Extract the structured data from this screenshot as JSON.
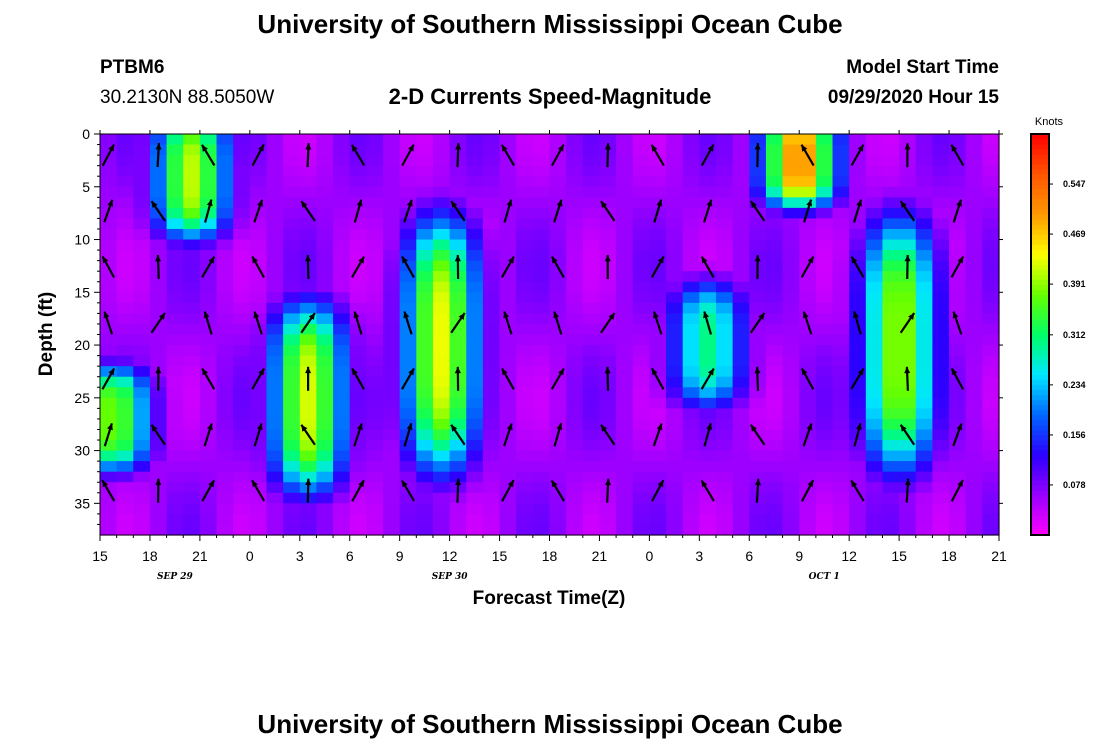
{
  "header": {
    "title_top": "University of Southern Mississippi Ocean Cube",
    "station_id": "PTBM6",
    "station_coords": "30.2130N 88.5050W",
    "subtitle": "2-D Currents Speed-Magnitude",
    "model_start_label": "Model Start Time",
    "model_start_value": "09/29/2020 Hour 15",
    "title_bottom": "University of Southern Mississippi Ocean Cube"
  },
  "colorbar": {
    "unit_label": "Knots",
    "tick_labels": [
      "0.547",
      "0.469",
      "0.391",
      "0.312",
      "0.234",
      "0.156",
      "0.078"
    ],
    "ticks": [
      0.547,
      0.469,
      0.391,
      0.312,
      0.234,
      0.156,
      0.078
    ],
    "range": [
      0,
      0.625
    ],
    "colors": [
      "#ff00ff",
      "#9900ff",
      "#2b00ff",
      "#0066ff",
      "#00e6ff",
      "#00ff66",
      "#66ff00",
      "#ffff00",
      "#ff9900",
      "#ff5500",
      "#ff0000"
    ]
  },
  "chart_data": {
    "type": "heatmap",
    "title": "2-D Currents Speed-Magnitude",
    "xlabel": "Forecast Time(Z)",
    "ylabel": "Depth (ft)",
    "x_tick_labels": [
      "15",
      "18",
      "21",
      "0",
      "3",
      "6",
      "9",
      "12",
      "15",
      "18",
      "21",
      "0",
      "3",
      "6",
      "9",
      "12",
      "15",
      "18",
      "21"
    ],
    "x_ticks_hours": [
      0,
      3,
      6,
      9,
      12,
      15,
      18,
      21,
      24,
      27,
      30,
      33,
      36,
      39,
      42,
      45,
      48,
      51,
      54
    ],
    "date_labels": [
      {
        "text": "SEP 29",
        "hour": 4.5
      },
      {
        "text": "SEP 30",
        "hour": 21
      },
      {
        "text": "OCT 1",
        "hour": 43.5
      }
    ],
    "xlim_hours": [
      0,
      54
    ],
    "y_tick_labels": [
      "0",
      "5",
      "10",
      "15",
      "20",
      "25",
      "30",
      "35"
    ],
    "y_ticks": [
      0,
      5,
      10,
      15,
      20,
      25,
      30,
      35
    ],
    "ylim": [
      0,
      38
    ],
    "value_units": "Knots",
    "vrange": [
      0,
      0.625
    ],
    "speed_core_features": [
      {
        "hour": 5.5,
        "depth_range": [
          0,
          8
        ],
        "speed": 0.39
      },
      {
        "hour": 0.8,
        "depth_range": [
          24,
          30
        ],
        "speed": 0.36
      },
      {
        "hour": 12.5,
        "depth_range": [
          18,
          32
        ],
        "speed": 0.4
      },
      {
        "hour": 20.5,
        "depth_range": [
          10,
          30
        ],
        "speed": 0.41
      },
      {
        "hour": 36.5,
        "depth_range": [
          16,
          24
        ],
        "speed": 0.28
      },
      {
        "hour": 42,
        "depth_range": [
          0,
          5
        ],
        "speed": 0.5
      },
      {
        "hour": 48,
        "depth_range": [
          10,
          30
        ],
        "speed": 0.38
      }
    ]
  }
}
